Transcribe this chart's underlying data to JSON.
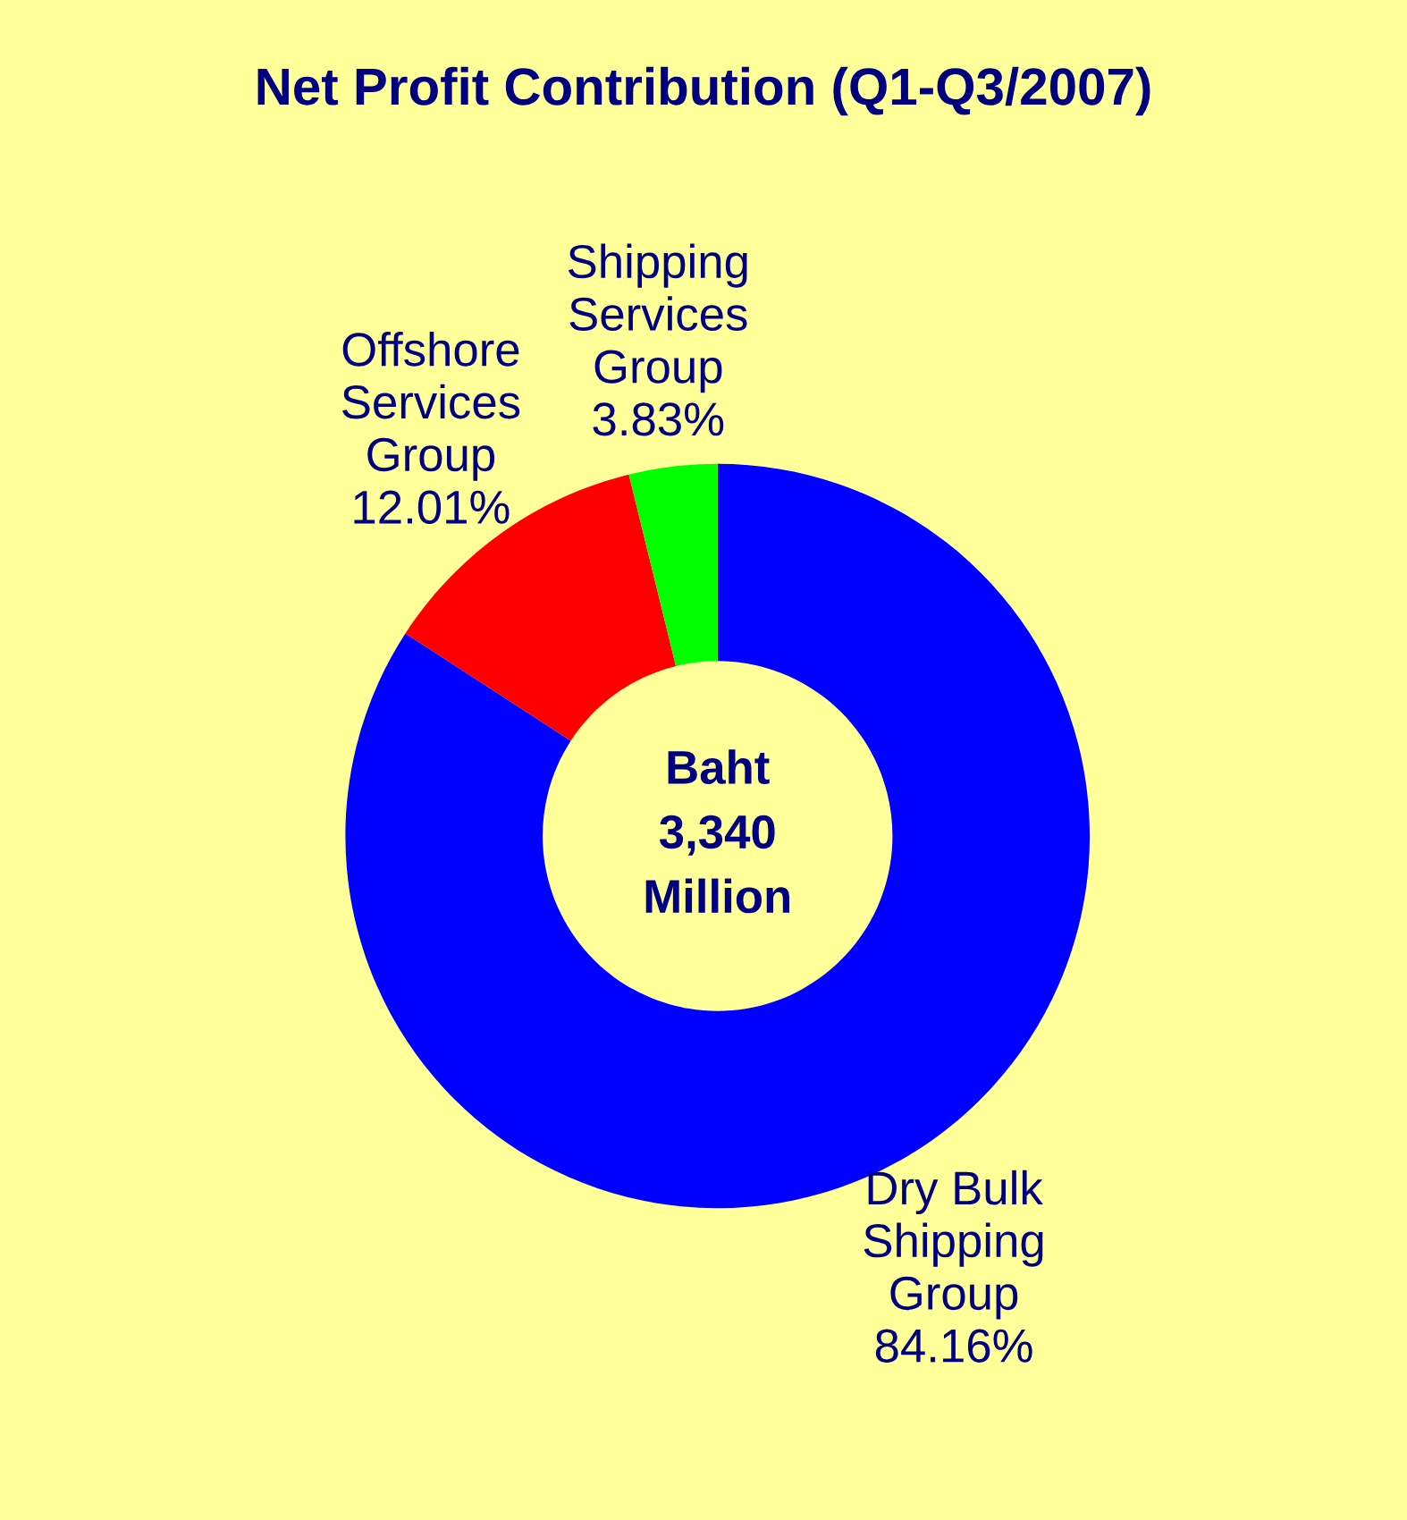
{
  "chart_data": {
    "type": "donut",
    "title": "Net Profit Contribution (Q1-Q3/2007)",
    "categories": [
      "Dry Bulk Shipping Group",
      "Offshore Services Group",
      "Shipping Services Group"
    ],
    "values": [
      84.16,
      12.01,
      3.83
    ],
    "colors": [
      "#0000ff",
      "#ff0000",
      "#00ff00"
    ],
    "value_labels": [
      "84.16%",
      "12.01%",
      "3.83%"
    ],
    "annotations": [
      "Baht\n3,340\nMillion"
    ],
    "legend": false
  }
}
